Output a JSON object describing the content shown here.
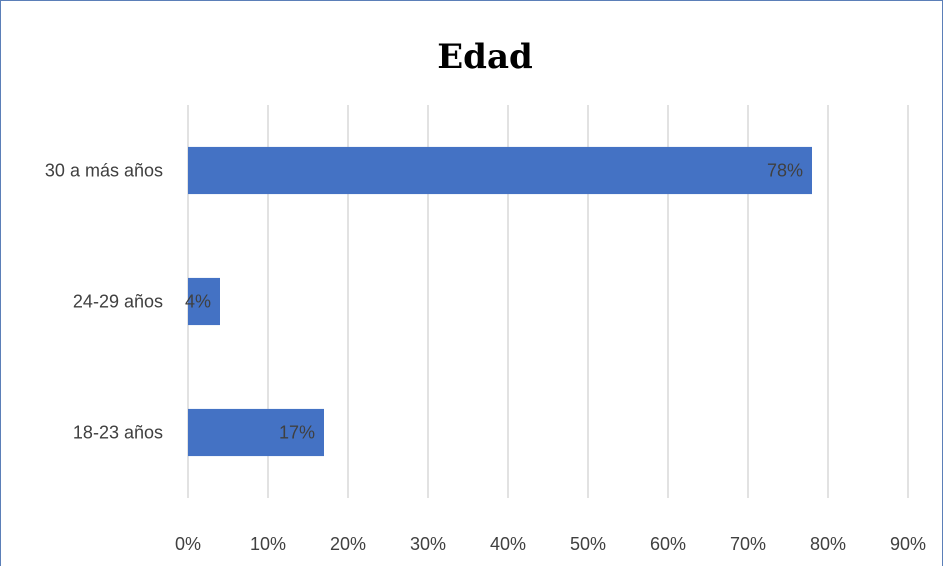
{
  "chart_data": {
    "type": "bar",
    "orientation": "horizontal",
    "title": "Edad",
    "categories": [
      "30 a más años",
      "24-29 años",
      "18-23 años"
    ],
    "values": [
      78,
      4,
      17
    ],
    "data_labels": [
      "78%",
      "4%",
      "17%"
    ],
    "xlim": [
      0,
      90
    ],
    "x_ticks": [
      "0%",
      "10%",
      "20%",
      "30%",
      "40%",
      "50%",
      "60%",
      "70%",
      "80%",
      "90%"
    ],
    "grid": "vertical",
    "legend": "none",
    "bar_color": "#4472c4",
    "grid_color": "#d9d9d9"
  }
}
